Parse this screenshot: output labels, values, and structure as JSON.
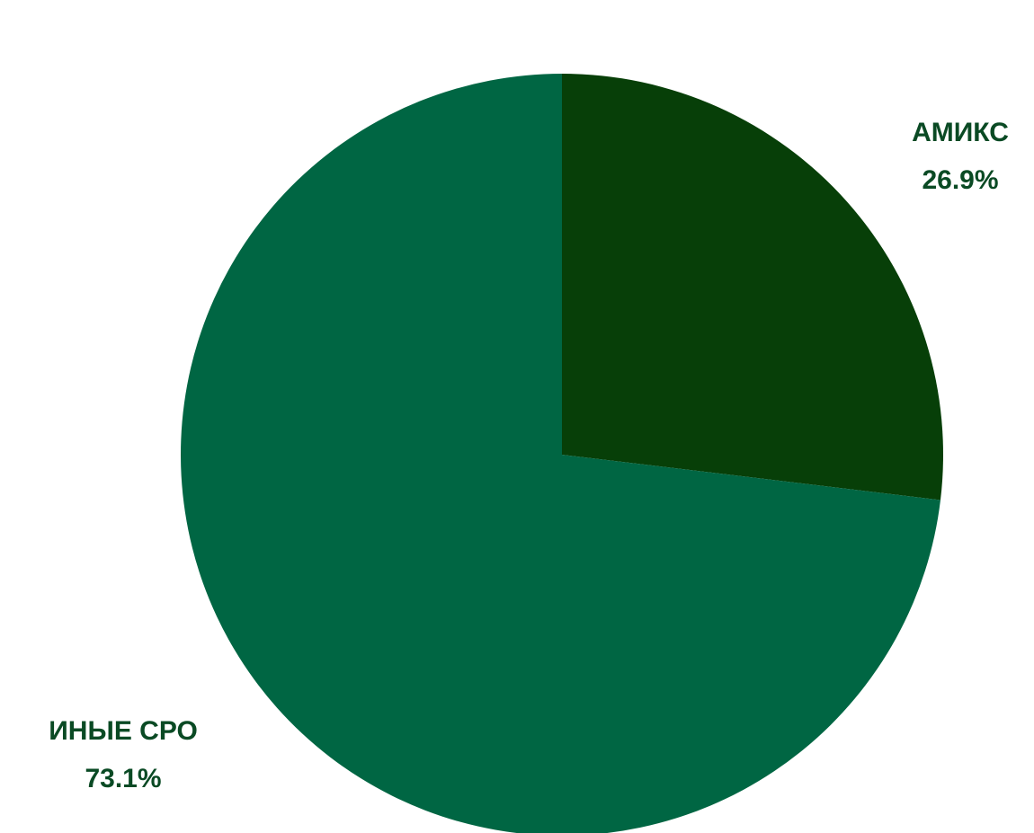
{
  "chart_data": {
    "type": "pie",
    "slices": [
      {
        "label": "АМИКС",
        "value": 26.9,
        "value_label": "26.9%",
        "color": "#073f08"
      },
      {
        "label": "ИНЫЕ СРО",
        "value": 73.1,
        "value_label": "73.1%",
        "color": "#006643"
      }
    ],
    "label_color": "#0a4a24",
    "background": "#ffffff"
  }
}
